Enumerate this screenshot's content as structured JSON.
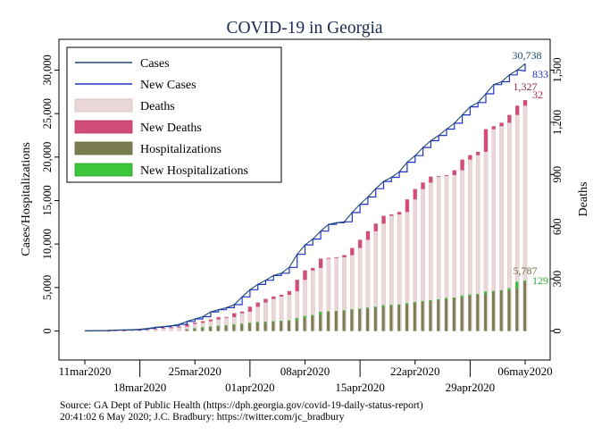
{
  "chart_data": {
    "type": "bar+line",
    "title": "COVID-19 in Georgia",
    "ylabel_left": "Cases/Hospitalizations",
    "ylabel_right": "Deaths",
    "ylim_left": [
      0,
      32000
    ],
    "ylim_right": [
      0,
      1600
    ],
    "yticks_left": [
      0,
      5000,
      10000,
      15000,
      20000,
      25000,
      30000
    ],
    "yticks_left_labels": [
      "0",
      "5,000",
      "10,000",
      "15,000",
      "20,000",
      "25,000",
      "30,000"
    ],
    "yticks_right": [
      0,
      300,
      600,
      900,
      1200,
      1500
    ],
    "yticks_right_labels": [
      "0",
      "300",
      "600",
      "900",
      "1,200",
      "1,500"
    ],
    "x_start": "2020-03-07",
    "x_end": "2020-05-09",
    "xticks": [
      {
        "date": "2020-03-11",
        "label": "11mar2020",
        "row": 1
      },
      {
        "date": "2020-03-18",
        "label": "18mar2020",
        "row": 2
      },
      {
        "date": "2020-03-25",
        "label": "25mar2020",
        "row": 1
      },
      {
        "date": "2020-04-01",
        "label": "01apr2020",
        "row": 2
      },
      {
        "date": "2020-04-08",
        "label": "08apr2020",
        "row": 1
      },
      {
        "date": "2020-04-15",
        "label": "15apr2020",
        "row": 2
      },
      {
        "date": "2020-04-22",
        "label": "22apr2020",
        "row": 1
      },
      {
        "date": "2020-04-29",
        "label": "29apr2020",
        "row": 2
      },
      {
        "date": "2020-05-06",
        "label": "06may2020",
        "row": 1
      }
    ],
    "dates": [
      "2020-03-11",
      "2020-03-12",
      "2020-03-13",
      "2020-03-14",
      "2020-03-15",
      "2020-03-16",
      "2020-03-17",
      "2020-03-18",
      "2020-03-19",
      "2020-03-20",
      "2020-03-21",
      "2020-03-22",
      "2020-03-23",
      "2020-03-24",
      "2020-03-25",
      "2020-03-26",
      "2020-03-27",
      "2020-03-28",
      "2020-03-29",
      "2020-03-30",
      "2020-03-31",
      "2020-04-01",
      "2020-04-02",
      "2020-04-03",
      "2020-04-04",
      "2020-04-05",
      "2020-04-06",
      "2020-04-07",
      "2020-04-08",
      "2020-04-09",
      "2020-04-10",
      "2020-04-11",
      "2020-04-12",
      "2020-04-13",
      "2020-04-14",
      "2020-04-15",
      "2020-04-16",
      "2020-04-17",
      "2020-04-18",
      "2020-04-19",
      "2020-04-20",
      "2020-04-21",
      "2020-04-22",
      "2020-04-23",
      "2020-04-24",
      "2020-04-25",
      "2020-04-26",
      "2020-04-27",
      "2020-04-28",
      "2020-04-29",
      "2020-04-30",
      "2020-05-01",
      "2020-05-02",
      "2020-05-03",
      "2020-05-04",
      "2020-05-05",
      "2020-05-06"
    ],
    "series": [
      {
        "name": "Cases",
        "axis": "left",
        "kind": "line",
        "color": "#1a476f",
        "values": [
          22,
          31,
          42,
          66,
          99,
          121,
          146,
          197,
          287,
          420,
          507,
          600,
          772,
          1097,
          1387,
          1643,
          2198,
          2446,
          2683,
          3032,
          3929,
          4748,
          5348,
          5831,
          6383,
          6647,
          7314,
          8818,
          9901,
          10566,
          11483,
          12261,
          12452,
          12550,
          13621,
          14578,
          15409,
          16368,
          17194,
          17669,
          18301,
          19407,
          20166,
          21102,
          21883,
          22491,
          23216,
          23893,
          24854,
          25775,
          26264,
          27270,
          28331,
          28665,
          29452,
          30017,
          30738
        ]
      },
      {
        "name": "New Cases",
        "axis": "left",
        "kind": "spike",
        "color": "#1e32c8",
        "values": [
          5,
          9,
          11,
          24,
          33,
          22,
          25,
          51,
          90,
          133,
          87,
          93,
          172,
          325,
          290,
          256,
          555,
          248,
          237,
          349,
          897,
          819,
          600,
          483,
          552,
          264,
          667,
          1504,
          1083,
          665,
          917,
          778,
          191,
          98,
          1071,
          957,
          831,
          959,
          826,
          475,
          632,
          1106,
          759,
          936,
          781,
          608,
          725,
          677,
          961,
          921,
          489,
          1006,
          1061,
          334,
          787,
          565,
          833
        ]
      },
      {
        "name": "Deaths",
        "axis": "right",
        "kind": "bar",
        "color": "#ead8d8",
        "values": [
          0,
          0,
          0,
          1,
          1,
          3,
          3,
          10,
          13,
          14,
          17,
          20,
          25,
          40,
          47,
          56,
          66,
          79,
          80,
          102,
          111,
          139,
          163,
          184,
          198,
          208,
          229,
          294,
          348,
          362,
          416,
          420,
          424,
          436,
          477,
          524,
          573,
          617,
          662,
          670,
          684,
          756,
          816,
          853,
          887,
          891,
          896,
          924,
          985,
          1011,
          1030,
          1160,
          1177,
          1197,
          1242,
          1295,
          1327
        ]
      },
      {
        "name": "New Deaths",
        "axis": "right",
        "kind": "bar-cap",
        "color": "#d14d78",
        "values": [
          0,
          0,
          0,
          1,
          0,
          2,
          0,
          7,
          3,
          1,
          3,
          3,
          5,
          15,
          7,
          9,
          10,
          13,
          1,
          22,
          9,
          28,
          24,
          21,
          14,
          10,
          21,
          65,
          54,
          14,
          54,
          4,
          4,
          12,
          41,
          47,
          49,
          44,
          45,
          8,
          14,
          72,
          60,
          37,
          34,
          4,
          5,
          28,
          61,
          26,
          19,
          130,
          17,
          20,
          45,
          53,
          32
        ]
      },
      {
        "name": "Hospitalizations",
        "axis": "left",
        "kind": "bar",
        "color": "#7a7d4f",
        "values": [
          0,
          0,
          0,
          0,
          0,
          0,
          0,
          0,
          0,
          0,
          0,
          0,
          0,
          200,
          317,
          438,
          509,
          617,
          666,
          773,
          833,
          952,
          1037,
          1056,
          1129,
          1169,
          1229,
          1486,
          1727,
          1833,
          2204,
          2261,
          2302,
          2380,
          2481,
          2569,
          2681,
          2781,
          2954,
          3004,
          3043,
          3195,
          3317,
          3447,
          3549,
          3633,
          3786,
          3848,
          4066,
          4192,
          4262,
          4533,
          4624,
          4691,
          4904,
          5658,
          5787
        ]
      },
      {
        "name": "New Hospitalizations",
        "axis": "left",
        "kind": "bar-cap",
        "color": "#3ac53a",
        "values": [
          0,
          0,
          0,
          0,
          0,
          0,
          0,
          0,
          0,
          0,
          0,
          0,
          0,
          0,
          117,
          121,
          71,
          108,
          49,
          107,
          60,
          119,
          85,
          19,
          73,
          40,
          60,
          257,
          241,
          106,
          371,
          57,
          41,
          78,
          101,
          88,
          112,
          100,
          173,
          50,
          39,
          152,
          122,
          130,
          102,
          84,
          153,
          62,
          218,
          126,
          70,
          271,
          91,
          67,
          213,
          754,
          129
        ]
      }
    ],
    "last_labels": {
      "cases": "30,738",
      "new_cases": "833",
      "deaths": "1,327",
      "new_deaths": "32",
      "hospitalizations": "5,787",
      "new_hospitalizations": "129"
    },
    "legend_position": "top-left",
    "grid": false
  },
  "source_line1": "Source: GA Dept of Public Health (https://dph.georgia.gov/covid-19-daily-status-report)",
  "source_line2": "20:41:02   6 May 2020; J.C. Bradbury: https://twitter.com/jc_bradbury"
}
